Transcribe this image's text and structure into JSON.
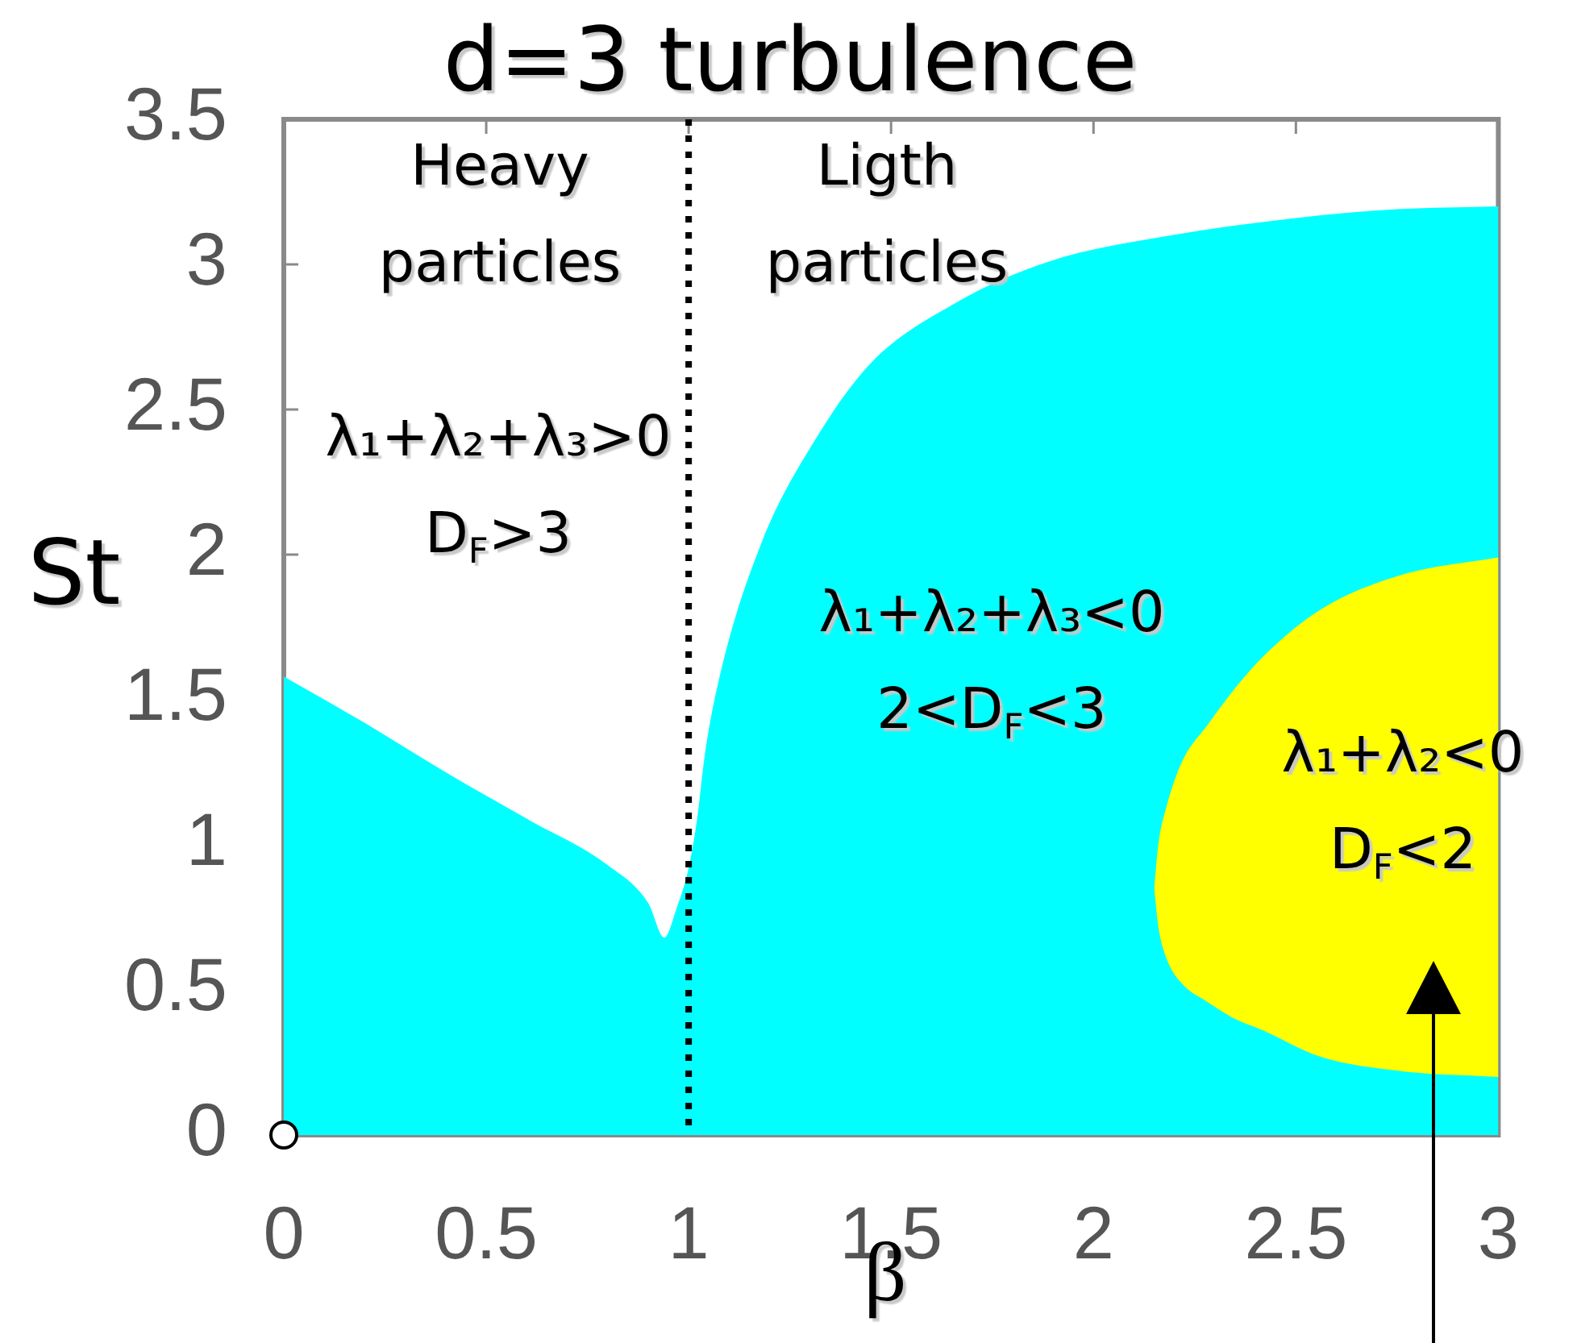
{
  "chart_data": {
    "type": "area",
    "title": "d=3 turbulence",
    "xlabel": "β",
    "ylabel": "St",
    "series": [
      {
        "color": "#00ffff",
        "x": [
          0,
          0.2,
          0.4,
          0.6,
          0.8,
          0.9,
          0.94,
          0.97,
          1.0,
          1.02,
          1.04,
          1.08,
          1.18,
          1.31,
          1.45,
          1.65,
          1.89,
          2.19,
          2.5,
          2.75,
          3.0
        ],
        "values": [
          1.58,
          1.42,
          1.25,
          1.09,
          0.93,
          0.8,
          0.68,
          0.78,
          0.92,
          1.08,
          1.31,
          1.6,
          2.04,
          2.39,
          2.66,
          2.86,
          3.01,
          3.1,
          3.16,
          3.19,
          3.2
        ]
      },
      {
        "color": "#ffff00",
        "x": [
          2.15,
          2.16,
          2.18,
          2.22,
          2.28,
          2.35,
          2.42,
          2.56,
          2.76,
          3.0
        ],
        "values": [
          null,
          null,
          null,
          null,
          null,
          null,
          null,
          null,
          null,
          null
        ],
        "lower": [
          0.85,
          0.72,
          0.61,
          0.52,
          0.46,
          0.4,
          0.36,
          0.27,
          0.22,
          0.2
        ],
        "upper": [
          0.85,
          1.0,
          1.13,
          1.29,
          1.41,
          1.54,
          1.65,
          1.81,
          1.93,
          1.99
        ]
      },
      {
        "type": "scatter",
        "x": [
          0
        ],
        "values": [
          0
        ],
        "color": "#ffffff",
        "marker": "circle"
      }
    ],
    "xlim": [
      0,
      3
    ],
    "xticks": [
      0,
      0.5,
      1,
      1.5,
      2,
      2.5,
      3
    ],
    "ylim": [
      0,
      3.5
    ],
    "yticks": [
      0,
      0.5,
      1,
      1.5,
      2,
      2.5,
      3,
      3.5
    ],
    "ref_lines": [
      {
        "axis": "x",
        "value": 1,
        "color": "#000000",
        "line_style": "dotted"
      }
    ],
    "annotations": [
      "Heavy\nparticles",
      "Ligth\nparticles",
      "λ₁+λ₂+λ₃>0\nD$_{F}$>3",
      "λ₁+λ₂+λ₃<0\n2<D$_{F}$<3",
      "λ₁+λ₂<0\nD$_{F}$<2"
    ]
  }
}
